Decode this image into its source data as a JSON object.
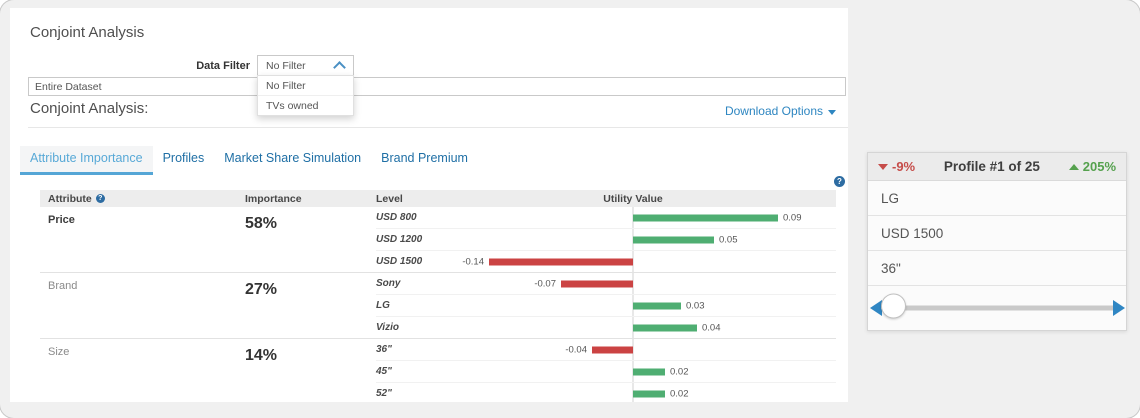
{
  "header": {
    "title": "Conjoint Analysis",
    "data_filter_label": "Data Filter",
    "filter_value": "No Filter",
    "filter_options": [
      "No Filter",
      "TVs owned"
    ],
    "dataset_value": "Entire Dataset",
    "section_title": "Conjoint Analysis:",
    "download_options_label": "Download Options"
  },
  "tabs": [
    {
      "label": "Attribute Importance",
      "active": true
    },
    {
      "label": "Profiles",
      "active": false
    },
    {
      "label": "Market Share Simulation",
      "active": false
    },
    {
      "label": "Brand Premium",
      "active": false
    }
  ],
  "chart_data": {
    "type": "bar",
    "orientation": "horizontal",
    "title": "Utility Value",
    "columns": [
      "Attribute",
      "Importance",
      "Level",
      "Utility Value"
    ],
    "zero_centered_axis": true,
    "positive_color": "#4fae72",
    "negative_color": "#cb4343",
    "groups": [
      {
        "attribute": "Price",
        "importance": "58%",
        "levels": [
          {
            "label": "USD 800",
            "value": 0.09,
            "display": "0.09"
          },
          {
            "label": "USD 1200",
            "value": 0.05,
            "display": "0.05"
          },
          {
            "label": "USD 1500",
            "value": -0.14,
            "display": "-0.14"
          }
        ]
      },
      {
        "attribute": "Brand",
        "importance": "27%",
        "levels": [
          {
            "label": "Sony",
            "value": -0.07,
            "display": "-0.07"
          },
          {
            "label": "LG",
            "value": 0.03,
            "display": "0.03"
          },
          {
            "label": "Vizio",
            "value": 0.04,
            "display": "0.04"
          }
        ]
      },
      {
        "attribute": "Size",
        "importance": "14%",
        "levels": [
          {
            "label": "36\"",
            "value": -0.04,
            "display": "-0.04"
          },
          {
            "label": "45\"",
            "value": 0.02,
            "display": "0.02"
          },
          {
            "label": "52\"",
            "value": 0.02,
            "display": "0.02"
          }
        ]
      }
    ]
  },
  "profile_panel": {
    "decrease_label": "-9%",
    "title": "Profile #1 of 25",
    "increase_label": "205%",
    "rows": [
      "LG",
      "USD 1500",
      "36\""
    ]
  }
}
